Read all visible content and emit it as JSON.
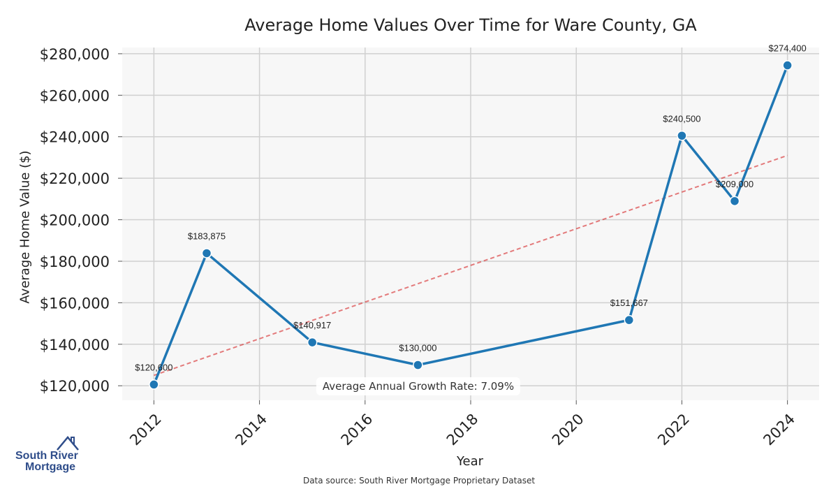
{
  "chart_data": {
    "type": "line",
    "title": "Average Home Values Over Time for Ware County, GA",
    "xlabel": "Year",
    "ylabel": "Average Home Value ($)",
    "x": [
      2012,
      2013,
      2015,
      2017,
      2021,
      2022,
      2023,
      2024
    ],
    "values": [
      120600,
      183875,
      140917,
      130000,
      151667,
      240500,
      209000,
      274400
    ],
    "data_labels": [
      "$120,600",
      "$183,875",
      "$140,917",
      "$130,000",
      "$151,667",
      "$240,500",
      "$209,000",
      "$274,400"
    ],
    "x_ticks": [
      "2012",
      "2014",
      "2016",
      "2018",
      "2020",
      "2022",
      "2024"
    ],
    "y_ticks": [
      "$120,000",
      "$140,000",
      "$160,000",
      "$180,000",
      "$200,000",
      "$220,000",
      "$240,000",
      "$260,000",
      "$280,000"
    ],
    "xlim": [
      2011.4,
      2024.6
    ],
    "ylim": [
      113000,
      283000
    ],
    "trendline": {
      "x": [
        2012,
        2024
      ],
      "y": [
        125000,
        231000
      ]
    },
    "colors": {
      "line": "#1f77b4",
      "trend": "#d62728",
      "background": "#f7f7f7",
      "grid": "#d0d0d0"
    },
    "annotation": "Average Annual Growth Rate: 7.09%"
  },
  "source": "Data source: South River Mortgage Proprietary Dataset",
  "logo": {
    "line1": "South River",
    "line2": "Mortgage"
  }
}
